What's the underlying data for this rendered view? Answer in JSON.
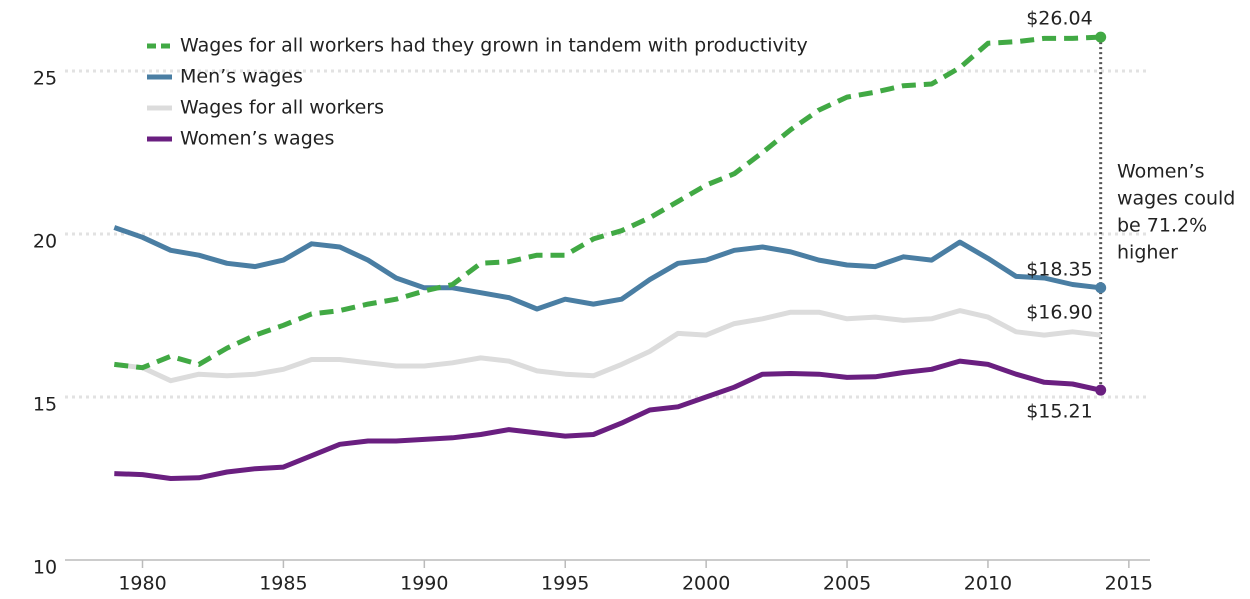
{
  "chart_data": {
    "type": "line",
    "x": [
      1979,
      1980,
      1981,
      1982,
      1983,
      1984,
      1985,
      1986,
      1987,
      1988,
      1989,
      1990,
      1991,
      1992,
      1993,
      1994,
      1995,
      1996,
      1997,
      1998,
      1999,
      2000,
      2001,
      2002,
      2003,
      2004,
      2005,
      2006,
      2007,
      2008,
      2009,
      2010,
      2011,
      2012,
      2013,
      2014
    ],
    "series": [
      {
        "name": "Wages for all workers had they grown in tandem with productivity",
        "color": "#41a944",
        "dashed": true,
        "end_dot": true,
        "values": [
          16.0,
          15.9,
          16.25,
          16.0,
          16.5,
          16.9,
          17.2,
          17.55,
          17.65,
          17.85,
          18.0,
          18.25,
          18.45,
          19.1,
          19.15,
          19.35,
          19.35,
          19.85,
          20.1,
          20.5,
          21.0,
          21.5,
          21.85,
          22.5,
          23.2,
          23.8,
          24.2,
          24.35,
          24.55,
          24.6,
          25.1,
          25.85,
          25.9,
          26.0,
          26.0,
          26.04
        ],
        "value_labels": [
          null,
          null,
          null,
          null,
          null,
          null,
          null,
          null,
          null,
          null,
          null,
          null,
          null,
          null,
          null,
          null,
          null,
          null,
          null,
          null,
          null,
          null,
          null,
          null,
          null,
          null,
          null,
          null,
          null,
          null,
          null,
          null,
          null,
          null,
          null,
          "$26.04"
        ]
      },
      {
        "name": "Men’s wages",
        "color": "#4a7ea3",
        "dashed": false,
        "end_dot": true,
        "values": [
          20.2,
          19.9,
          19.5,
          19.35,
          19.1,
          19.0,
          19.2,
          19.7,
          19.6,
          19.2,
          18.65,
          18.35,
          18.35,
          18.2,
          18.05,
          17.7,
          18.0,
          17.85,
          18.0,
          18.6,
          19.1,
          19.2,
          19.5,
          19.6,
          19.45,
          19.2,
          19.05,
          19.0,
          19.3,
          19.2,
          19.75,
          19.25,
          18.7,
          18.65,
          18.45,
          18.35
        ],
        "value_labels": [
          null,
          null,
          null,
          null,
          null,
          null,
          null,
          null,
          null,
          null,
          null,
          null,
          null,
          null,
          null,
          null,
          null,
          null,
          null,
          null,
          null,
          null,
          null,
          null,
          null,
          null,
          null,
          null,
          null,
          null,
          null,
          null,
          null,
          null,
          null,
          "$18.35"
        ]
      },
      {
        "name": "Wages for all workers",
        "color": "#dcdcdc",
        "dashed": false,
        "end_dot": false,
        "values": [
          16.0,
          15.9,
          15.5,
          15.7,
          15.65,
          15.7,
          15.85,
          16.15,
          16.15,
          16.05,
          15.95,
          15.95,
          16.05,
          16.2,
          16.1,
          15.8,
          15.7,
          15.65,
          16.0,
          16.4,
          16.95,
          16.9,
          17.25,
          17.4,
          17.6,
          17.6,
          17.4,
          17.45,
          17.35,
          17.4,
          17.65,
          17.45,
          17.0,
          16.9,
          17.0,
          16.9
        ],
        "value_labels": [
          null,
          null,
          null,
          null,
          null,
          null,
          null,
          null,
          null,
          null,
          null,
          null,
          null,
          null,
          null,
          null,
          null,
          null,
          null,
          null,
          null,
          null,
          null,
          null,
          null,
          null,
          null,
          null,
          null,
          null,
          null,
          null,
          null,
          null,
          null,
          "$16.90"
        ]
      },
      {
        "name": "Women’s wages",
        "color": "#6a1f80",
        "dashed": false,
        "end_dot": true,
        "values": [
          12.65,
          12.62,
          12.5,
          12.52,
          12.7,
          12.8,
          12.85,
          13.2,
          13.55,
          13.65,
          13.65,
          13.7,
          13.75,
          13.85,
          14.0,
          13.9,
          13.8,
          13.85,
          14.2,
          14.6,
          14.7,
          15.0,
          15.3,
          15.7,
          15.72,
          15.7,
          15.6,
          15.62,
          15.75,
          15.85,
          16.1,
          16.0,
          15.7,
          15.45,
          15.4,
          15.21
        ],
        "value_labels": [
          null,
          null,
          null,
          null,
          null,
          null,
          null,
          null,
          null,
          null,
          null,
          null,
          null,
          null,
          null,
          null,
          null,
          null,
          null,
          null,
          null,
          null,
          null,
          null,
          null,
          null,
          null,
          null,
          null,
          null,
          null,
          null,
          null,
          null,
          null,
          "$15.21"
        ]
      }
    ],
    "annotation": [
      "Women’s",
      "wages could",
      "be 71.2%",
      "higher"
    ],
    "xlim": [
      1977.25,
      2015.75
    ],
    "xticks": [
      1980,
      1985,
      1990,
      1995,
      2000,
      2005,
      2010,
      2015
    ],
    "ylim": [
      10,
      27
    ],
    "yticks": [
      10,
      15,
      20,
      25
    ],
    "grid": true,
    "legend": "top-left"
  }
}
